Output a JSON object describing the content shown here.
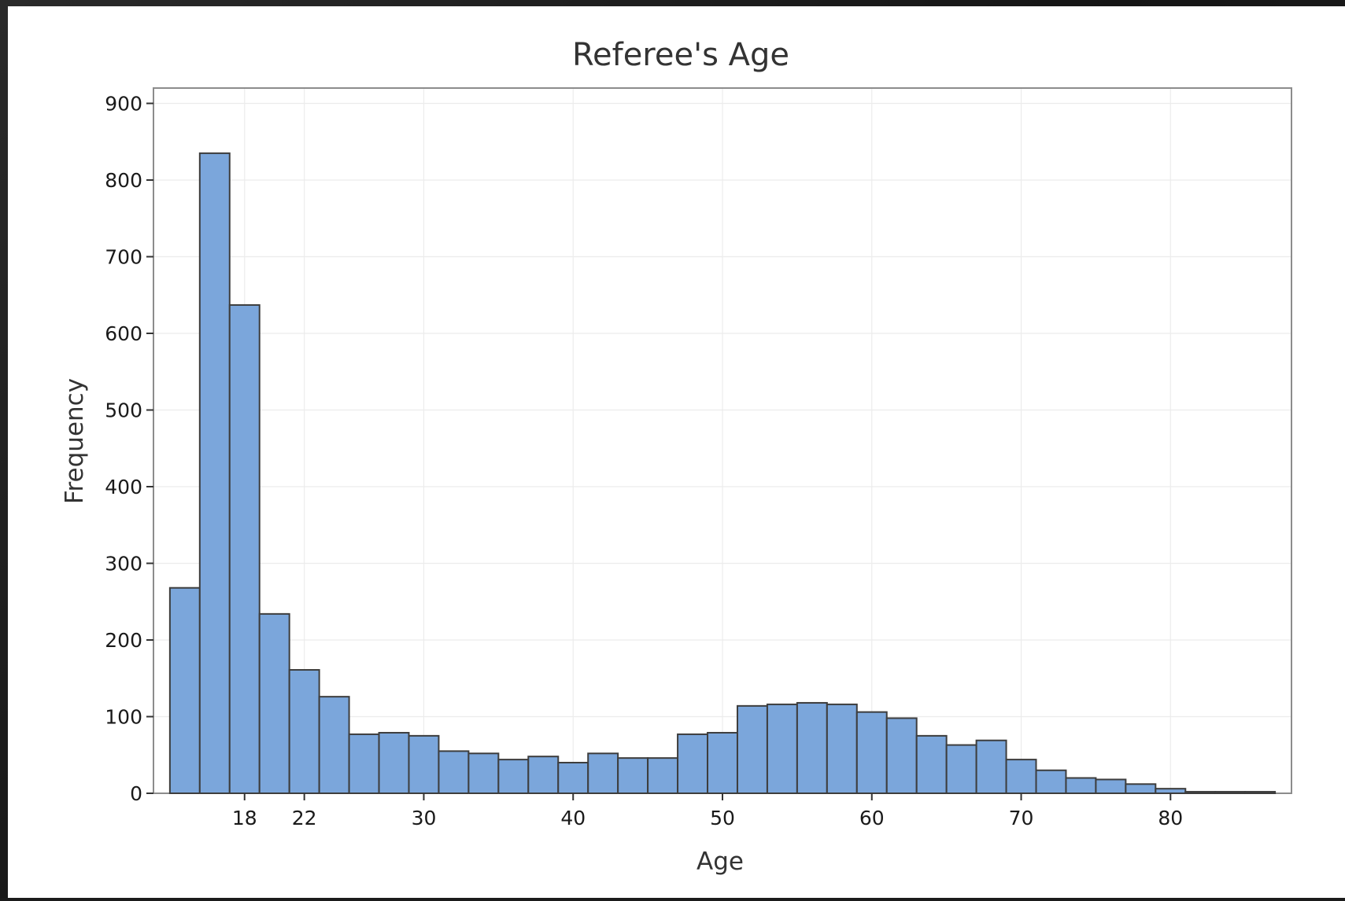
{
  "chart_data": {
    "type": "bar",
    "title": "Referee's Age",
    "xlabel": "Age",
    "ylabel": "Frequency",
    "histogram": true,
    "bin_width": 2,
    "x_start": 13,
    "xlim": [
      11.9,
      88.1
    ],
    "ylim": [
      0,
      920
    ],
    "x_ticks": [
      18,
      22,
      30,
      40,
      50,
      60,
      70,
      80
    ],
    "y_ticks": [
      0,
      100,
      200,
      300,
      400,
      500,
      600,
      700,
      800,
      900
    ],
    "grid": true,
    "bar_color": "#7ba6db",
    "edge_color": "#3d3d3d",
    "categories": [
      "13-15",
      "15-17",
      "17-19",
      "19-21",
      "21-23",
      "23-25",
      "25-27",
      "27-29",
      "29-31",
      "31-33",
      "33-35",
      "35-37",
      "37-39",
      "39-41",
      "41-43",
      "43-45",
      "45-47",
      "47-49",
      "49-51",
      "51-53",
      "53-55",
      "55-57",
      "57-59",
      "59-61",
      "61-63",
      "63-65",
      "65-67",
      "67-69",
      "69-71",
      "71-73",
      "73-75",
      "75-77",
      "77-79",
      "79-81",
      "81-83",
      "83-85",
      "85-87"
    ],
    "values": [
      268,
      835,
      637,
      234,
      161,
      126,
      77,
      79,
      75,
      55,
      52,
      44,
      48,
      40,
      52,
      46,
      46,
      77,
      79,
      114,
      116,
      118,
      116,
      106,
      98,
      75,
      63,
      69,
      44,
      30,
      20,
      18,
      12,
      6,
      2,
      2,
      2
    ]
  }
}
